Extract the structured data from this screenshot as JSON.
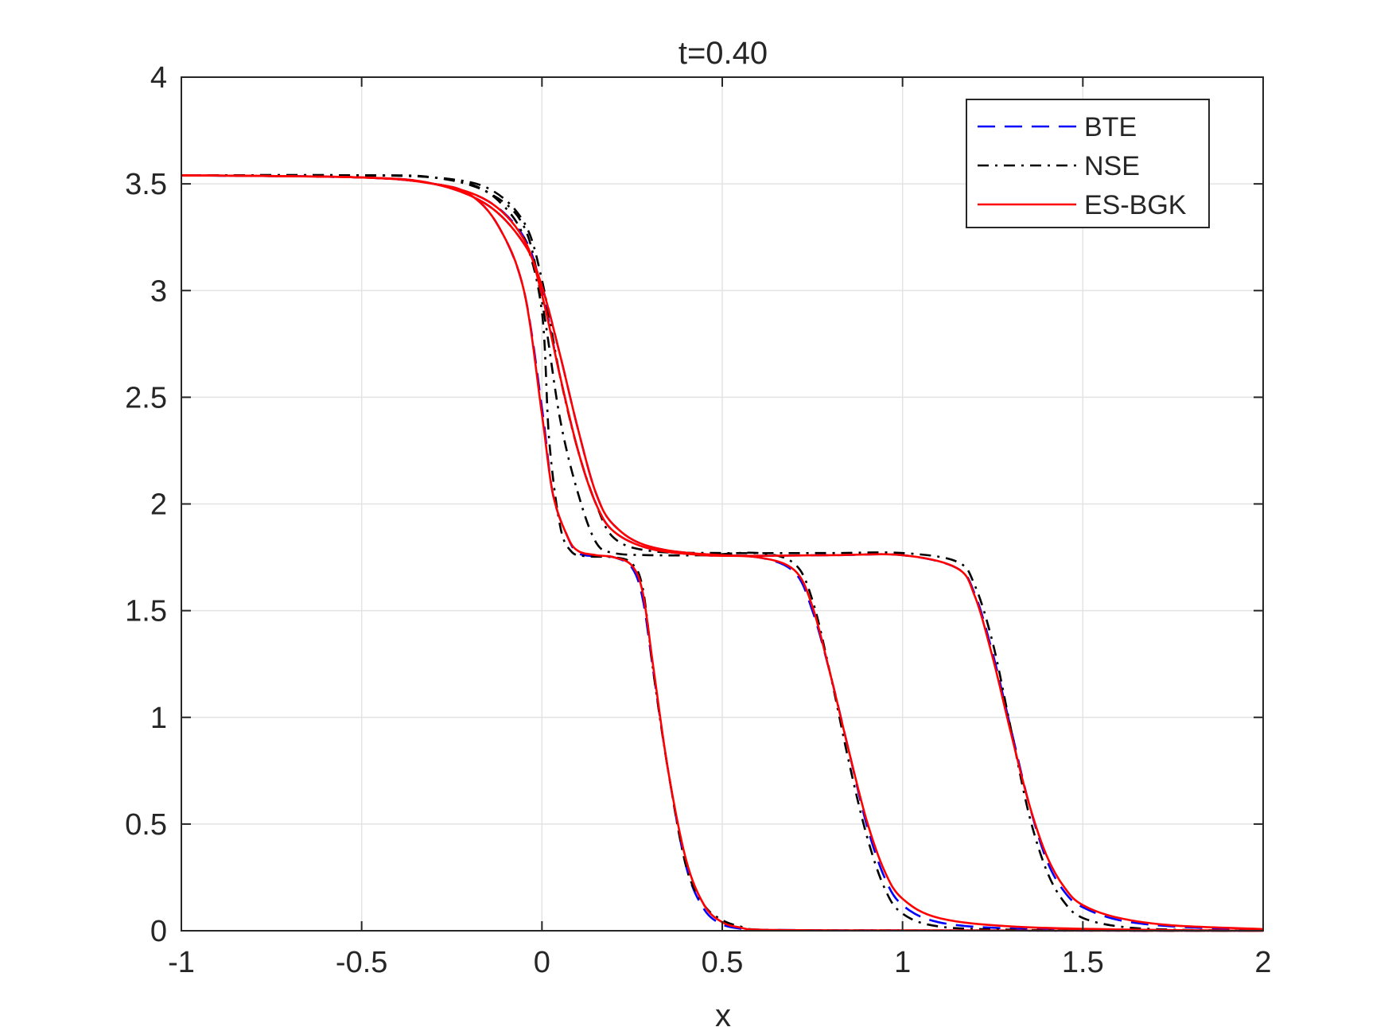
{
  "chart_data": {
    "type": "line",
    "title": "t=0.40",
    "xlabel": "x",
    "ylabel": "",
    "xlim": [
      -1,
      2
    ],
    "ylim": [
      0,
      4
    ],
    "grid": true,
    "legend_position": "top-right",
    "xticks": [
      -1,
      -0.5,
      0,
      0.5,
      1,
      1.5,
      2
    ],
    "xtick_labels": [
      "-1",
      "-0.5",
      "0",
      "0.5",
      "1",
      "1.5",
      "2"
    ],
    "yticks": [
      0,
      0.5,
      1,
      1.5,
      2,
      2.5,
      3,
      3.5,
      4
    ],
    "ytick_labels": [
      "0",
      "0.5",
      "1",
      "1.5",
      "2",
      "2.5",
      "3",
      "3.5",
      "4"
    ],
    "series": [
      {
        "name": "BTE",
        "color": "#0000ff",
        "dash": "dashed",
        "group": 1,
        "in_legend": true,
        "x": [
          -1,
          -0.5,
          -0.3,
          -0.2,
          -0.12,
          -0.05,
          0,
          0.03,
          0.07,
          0.1,
          0.15,
          0.2,
          0.25,
          0.28,
          0.31,
          0.35,
          0.4,
          0.45,
          0.5,
          0.55,
          0.6,
          0.8,
          1.2,
          2
        ],
        "y": [
          3.54,
          3.53,
          3.5,
          3.45,
          3.3,
          3.0,
          2.45,
          2.05,
          1.85,
          1.77,
          1.755,
          1.75,
          1.7,
          1.55,
          1.2,
          0.75,
          0.3,
          0.1,
          0.03,
          0.01,
          0.005,
          0.002,
          0.001,
          0.0
        ]
      },
      {
        "name": "NSE",
        "color": "#000000",
        "dash": "dashdot",
        "group": 1,
        "in_legend": true,
        "x": [
          -1,
          -0.5,
          -0.3,
          -0.2,
          -0.12,
          -0.05,
          0,
          0.02,
          0.05,
          0.08,
          0.12,
          0.2,
          0.25,
          0.28,
          0.31,
          0.35,
          0.4,
          0.45,
          0.5,
          0.55,
          0.6,
          0.8,
          1.2,
          2
        ],
        "y": [
          3.54,
          3.54,
          3.53,
          3.5,
          3.42,
          3.25,
          2.9,
          2.3,
          1.9,
          1.78,
          1.755,
          1.75,
          1.72,
          1.6,
          1.2,
          0.75,
          0.3,
          0.12,
          0.05,
          0.02,
          0.005,
          0.002,
          0.001,
          0.0
        ]
      },
      {
        "name": "ES-BGK",
        "color": "#ff0000",
        "dash": "solid",
        "group": 1,
        "in_legend": true,
        "x": [
          -1,
          -0.5,
          -0.3,
          -0.2,
          -0.12,
          -0.05,
          0,
          0.03,
          0.07,
          0.1,
          0.15,
          0.2,
          0.25,
          0.28,
          0.31,
          0.35,
          0.4,
          0.45,
          0.5,
          0.55,
          0.6,
          0.8,
          1.2,
          2
        ],
        "y": [
          3.54,
          3.53,
          3.5,
          3.45,
          3.3,
          3.0,
          2.42,
          2.05,
          1.85,
          1.78,
          1.76,
          1.75,
          1.71,
          1.58,
          1.22,
          0.75,
          0.33,
          0.12,
          0.04,
          0.015,
          0.005,
          0.002,
          0.001,
          0.0
        ]
      },
      {
        "name": "BTE",
        "color": "#0000ff",
        "dash": "dashed",
        "group": 2,
        "in_legend": false,
        "x": [
          -1,
          -0.5,
          -0.3,
          -0.15,
          -0.05,
          0,
          0.05,
          0.1,
          0.15,
          0.2,
          0.3,
          0.45,
          0.6,
          0.7,
          0.75,
          0.8,
          0.85,
          0.9,
          0.95,
          1.0,
          1.1,
          1.3,
          1.6,
          2
        ],
        "y": [
          3.54,
          3.53,
          3.5,
          3.42,
          3.25,
          3.0,
          2.6,
          2.25,
          2.0,
          1.87,
          1.79,
          1.76,
          1.75,
          1.68,
          1.5,
          1.2,
          0.85,
          0.5,
          0.25,
          0.12,
          0.04,
          0.01,
          0.003,
          0.0
        ]
      },
      {
        "name": "NSE",
        "color": "#000000",
        "dash": "dashdot",
        "group": 2,
        "in_legend": false,
        "x": [
          -1,
          -0.5,
          -0.3,
          -0.15,
          -0.05,
          0,
          0.05,
          0.1,
          0.15,
          0.2,
          0.3,
          0.45,
          0.6,
          0.7,
          0.75,
          0.8,
          0.85,
          0.9,
          0.95,
          1.0,
          1.1,
          1.3,
          1.6,
          2
        ],
        "y": [
          3.54,
          3.54,
          3.53,
          3.46,
          3.3,
          2.95,
          2.4,
          2.05,
          1.82,
          1.77,
          1.76,
          1.76,
          1.77,
          1.72,
          1.55,
          1.2,
          0.8,
          0.45,
          0.2,
          0.08,
          0.02,
          0.005,
          0.001,
          0.0
        ]
      },
      {
        "name": "ES-BGK",
        "color": "#ff0000",
        "dash": "solid",
        "group": 2,
        "in_legend": false,
        "x": [
          -1,
          -0.5,
          -0.3,
          -0.15,
          -0.05,
          0,
          0.05,
          0.1,
          0.15,
          0.2,
          0.3,
          0.45,
          0.6,
          0.7,
          0.75,
          0.8,
          0.85,
          0.9,
          0.95,
          1.0,
          1.1,
          1.3,
          1.6,
          2
        ],
        "y": [
          3.54,
          3.53,
          3.5,
          3.42,
          3.24,
          2.98,
          2.6,
          2.25,
          2.0,
          1.87,
          1.79,
          1.76,
          1.75,
          1.69,
          1.52,
          1.2,
          0.85,
          0.52,
          0.28,
          0.15,
          0.06,
          0.02,
          0.006,
          0.0
        ]
      },
      {
        "name": "BTE",
        "color": "#0000ff",
        "dash": "dashed",
        "group": 3,
        "in_legend": false,
        "x": [
          -1,
          -0.5,
          -0.3,
          -0.15,
          -0.05,
          0,
          0.05,
          0.1,
          0.15,
          0.2,
          0.3,
          0.5,
          0.8,
          1.0,
          1.15,
          1.2,
          1.25,
          1.3,
          1.35,
          1.4,
          1.45,
          1.5,
          1.6,
          1.75,
          2
        ],
        "y": [
          3.54,
          3.53,
          3.5,
          3.4,
          3.22,
          3.02,
          2.7,
          2.35,
          2.05,
          1.9,
          1.8,
          1.76,
          1.76,
          1.76,
          1.7,
          1.58,
          1.3,
          0.95,
          0.6,
          0.33,
          0.18,
          0.11,
          0.05,
          0.02,
          0.003
        ]
      },
      {
        "name": "NSE",
        "color": "#000000",
        "dash": "dashdot",
        "group": 3,
        "in_legend": false,
        "x": [
          -1,
          -0.5,
          -0.3,
          -0.15,
          -0.05,
          0,
          0.05,
          0.1,
          0.15,
          0.2,
          0.3,
          0.5,
          0.8,
          1.0,
          1.15,
          1.2,
          1.25,
          1.3,
          1.35,
          1.4,
          1.45,
          1.5,
          1.6,
          1.75,
          2
        ],
        "y": [
          3.54,
          3.54,
          3.53,
          3.48,
          3.32,
          3.05,
          2.6,
          2.25,
          2.0,
          1.84,
          1.78,
          1.77,
          1.77,
          1.77,
          1.73,
          1.62,
          1.35,
          0.95,
          0.55,
          0.28,
          0.13,
          0.06,
          0.02,
          0.005,
          0.001
        ]
      },
      {
        "name": "ES-BGK",
        "color": "#ff0000",
        "dash": "solid",
        "group": 3,
        "in_legend": false,
        "x": [
          -1,
          -0.5,
          -0.3,
          -0.15,
          -0.05,
          0,
          0.05,
          0.1,
          0.15,
          0.2,
          0.3,
          0.5,
          0.8,
          1.0,
          1.15,
          1.2,
          1.25,
          1.3,
          1.35,
          1.4,
          1.45,
          1.5,
          1.6,
          1.75,
          2
        ],
        "y": [
          3.54,
          3.53,
          3.5,
          3.4,
          3.22,
          3.02,
          2.7,
          2.35,
          2.05,
          1.9,
          1.8,
          1.76,
          1.76,
          1.76,
          1.7,
          1.57,
          1.28,
          0.93,
          0.6,
          0.35,
          0.2,
          0.12,
          0.06,
          0.025,
          0.008
        ]
      }
    ],
    "legend": [
      {
        "label": "BTE",
        "color": "#0000ff",
        "dash": "dashed"
      },
      {
        "label": "NSE",
        "color": "#000000",
        "dash": "dashdot"
      },
      {
        "label": "ES-BGK",
        "color": "#ff0000",
        "dash": "solid"
      }
    ]
  }
}
